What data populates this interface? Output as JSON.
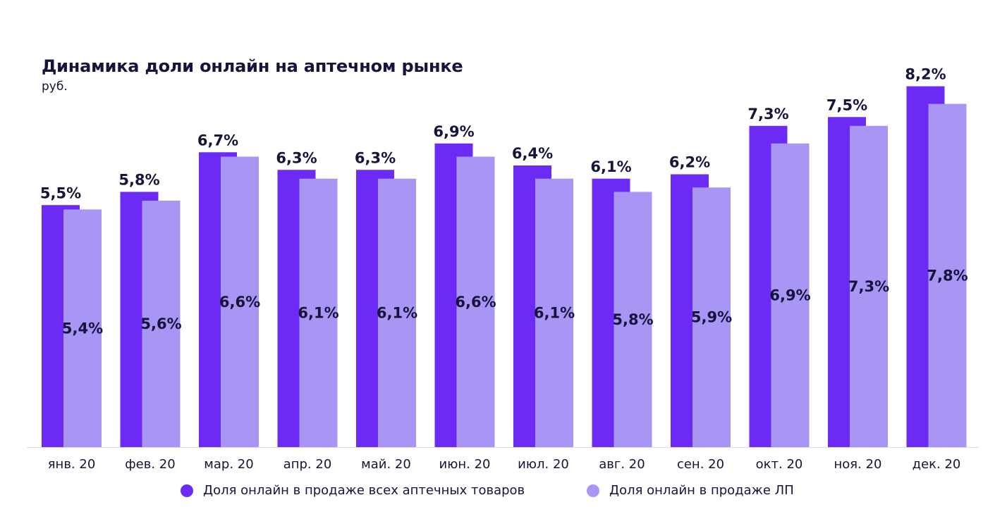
{
  "chart_data": {
    "type": "bar",
    "title": "Динамика доли онлайн на аптечном рынке",
    "subtitle": "руб.",
    "categories": [
      "янв. 20",
      "фев. 20",
      "мар. 20",
      "апр. 20",
      "май. 20",
      "июн. 20",
      "июл. 20",
      "авг. 20",
      "сен. 20",
      "окт. 20",
      "ноя. 20",
      "дек. 20"
    ],
    "series": [
      {
        "name": "Доля онлайн в продаже всех аптечных товаров",
        "values": [
          5.5,
          5.8,
          6.7,
          6.3,
          6.3,
          6.9,
          6.4,
          6.1,
          6.2,
          7.3,
          7.5,
          8.2
        ],
        "labels": [
          "5,5%",
          "5,8%",
          "6,7%",
          "6,3%",
          "6,3%",
          "6,9%",
          "6,4%",
          "6,1%",
          "6,2%",
          "7,3%",
          "7,5%",
          "8,2%"
        ],
        "color": "#6b2bf5"
      },
      {
        "name": "Доля онлайн в продаже ЛП",
        "values": [
          5.4,
          5.6,
          6.6,
          6.1,
          6.1,
          6.6,
          6.1,
          5.8,
          5.9,
          6.9,
          7.3,
          7.8
        ],
        "labels": [
          "5,4%",
          "5,6%",
          "6,6%",
          "6,1%",
          "6,1%",
          "6,6%",
          "6,1%",
          "5,8%",
          "5,9%",
          "6,9%",
          "7,3%",
          "7,8%"
        ],
        "color": "#a996f4"
      }
    ],
    "ylim": [
      0,
      8.2
    ],
    "grid": false,
    "legend_position": "bottom",
    "axis_color": "#d9d9e6",
    "label_color": "#14143c"
  }
}
